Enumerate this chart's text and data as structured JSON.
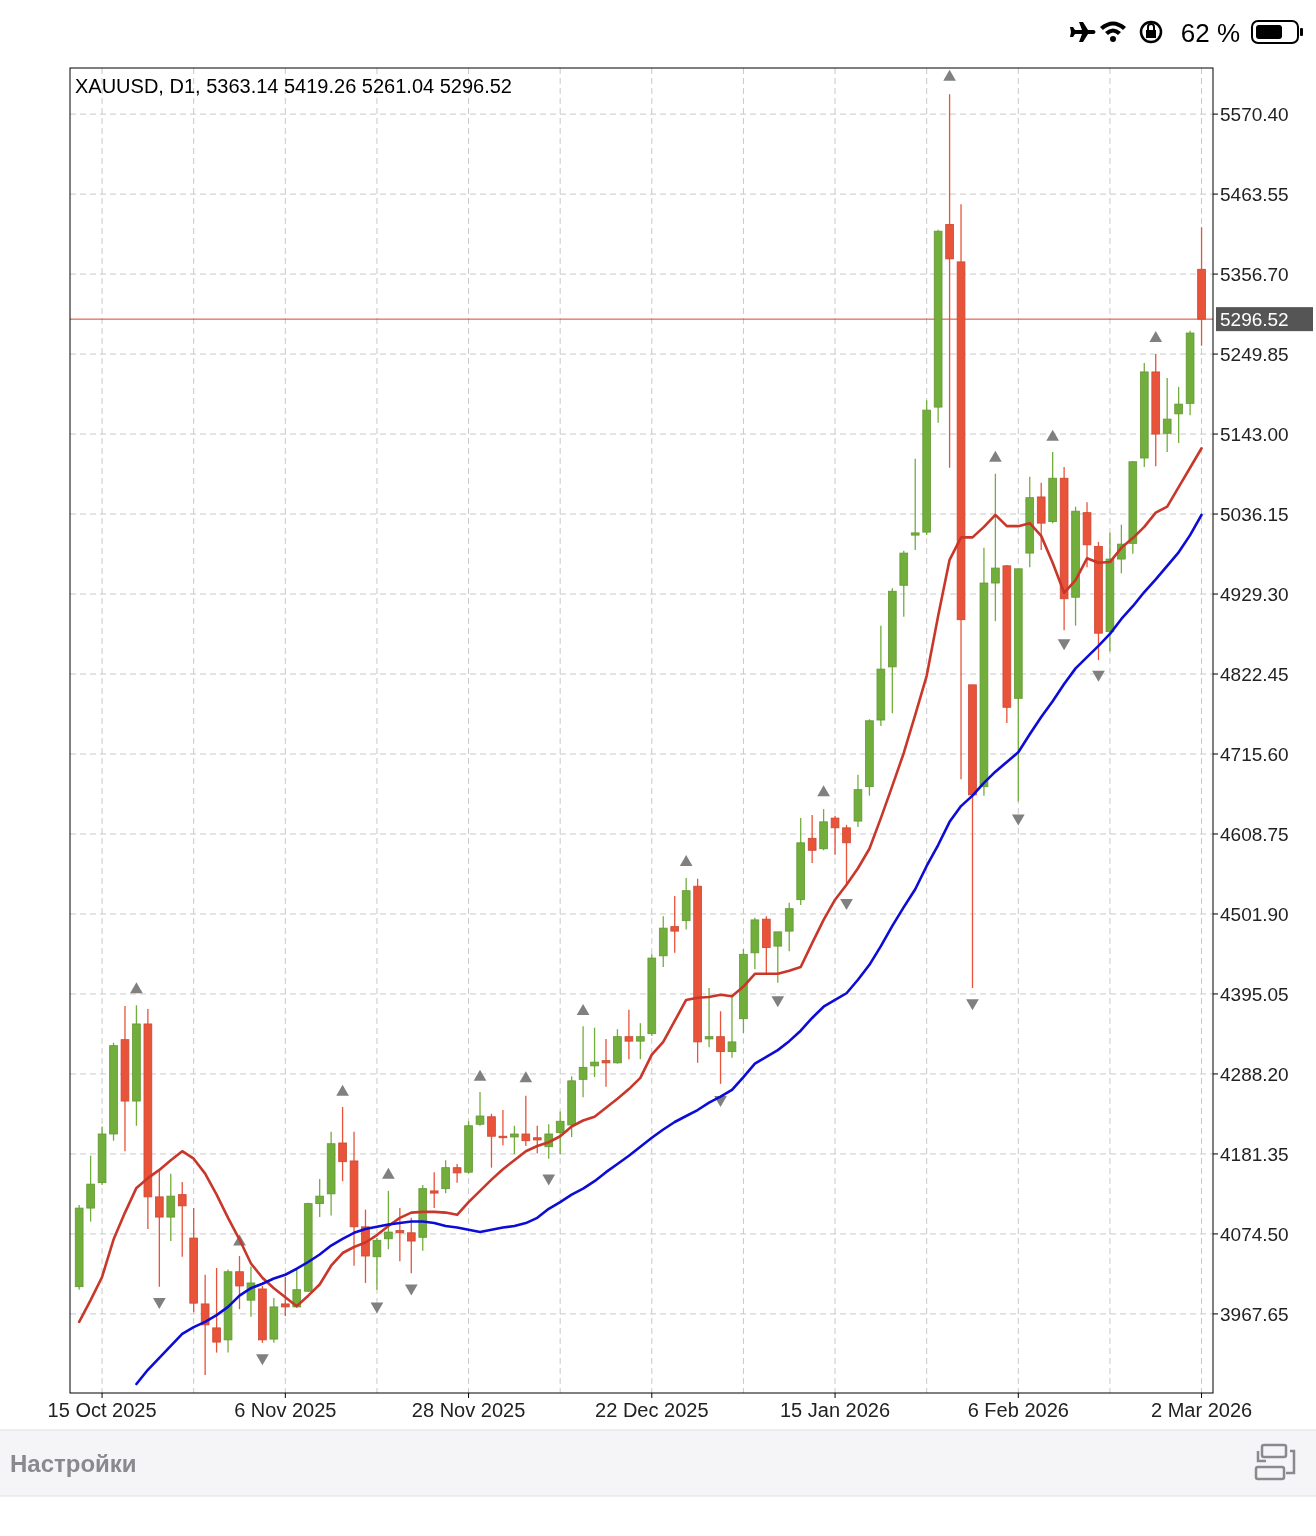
{
  "chart_data": {
    "type": "candlestick",
    "title": "XAUUSD, D1, 5363.14 5419.26 5261.04 5296.52",
    "categories": [
      null,
      null,
      "15 Oct 2025",
      null,
      null,
      null,
      null,
      null,
      null,
      null,
      null,
      null,
      null,
      null,
      null,
      null,
      null,
      null,
      "6 Nov 2025",
      null,
      null,
      null,
      null,
      null,
      null,
      null,
      null,
      null,
      null,
      null,
      null,
      null,
      null,
      null,
      "28 Nov 2025",
      null,
      null,
      null,
      null,
      null,
      null,
      null,
      null,
      null,
      null,
      null,
      null,
      null,
      null,
      null,
      "22 Dec 2025",
      null,
      null,
      null,
      null,
      null,
      null,
      null,
      null,
      null,
      null,
      null,
      null,
      null,
      null,
      null,
      "15 Jan 2026",
      null,
      null,
      null,
      null,
      null,
      null,
      null,
      null,
      null,
      null,
      null,
      null,
      null,
      null,
      null,
      "6 Feb 2026",
      null,
      null,
      null,
      null,
      null,
      null,
      null,
      null,
      null,
      null,
      null,
      null,
      null,
      null,
      null,
      "2 Mar 2026"
    ],
    "ohlc": [
      [
        4004,
        4113,
        4000,
        4109
      ],
      [
        4109,
        4179,
        4091,
        4141
      ],
      [
        4143,
        4218,
        4140,
        4208
      ],
      [
        4208,
        4330,
        4199,
        4326
      ],
      [
        4334,
        4379,
        4185,
        4252
      ],
      [
        4252,
        4380,
        4219,
        4355
      ],
      [
        4355,
        4375,
        4081,
        4124
      ],
      [
        4124,
        4160,
        4004,
        4097
      ],
      [
        4097,
        4155,
        4065,
        4125
      ],
      [
        4127,
        4144,
        4044,
        4112
      ],
      [
        4069,
        4109,
        3970,
        3982
      ],
      [
        3981,
        4020,
        3886,
        3953
      ],
      [
        3949,
        4029,
        3916,
        3930
      ],
      [
        3933,
        4027,
        3916,
        4024
      ],
      [
        4024,
        4045,
        3974,
        4005
      ],
      [
        3986,
        4031,
        3964,
        4009
      ],
      [
        4001,
        4005,
        3929,
        3933
      ],
      [
        3934,
        3989,
        3929,
        3977
      ],
      [
        3981,
        4017,
        3965,
        3977
      ],
      [
        3977,
        4029,
        3976,
        4000
      ],
      [
        3998,
        4116,
        3997,
        4115
      ],
      [
        4115,
        4148,
        4097,
        4125
      ],
      [
        4128,
        4211,
        4099,
        4195
      ],
      [
        4196,
        4244,
        4145,
        4171
      ],
      [
        4172,
        4211,
        4032,
        4084
      ],
      [
        4084,
        4107,
        4009,
        4045
      ],
      [
        4044,
        4069,
        4000,
        4066
      ],
      [
        4068,
        4132,
        4054,
        4077
      ],
      [
        4079,
        4109,
        4038,
        4076
      ],
      [
        4076,
        4096,
        4022,
        4065
      ],
      [
        4070,
        4140,
        4052,
        4135
      ],
      [
        4132,
        4157,
        4109,
        4129
      ],
      [
        4135,
        4173,
        4129,
        4163
      ],
      [
        4163,
        4168,
        4143,
        4156
      ],
      [
        4157,
        4225,
        4155,
        4219
      ],
      [
        4221,
        4264,
        4219,
        4232
      ],
      [
        4231,
        4235,
        4163,
        4205
      ],
      [
        4205,
        4240,
        4193,
        4203
      ],
      [
        4204,
        4219,
        4181,
        4208
      ],
      [
        4208,
        4259,
        4192,
        4199
      ],
      [
        4203,
        4219,
        4182,
        4200
      ],
      [
        4191,
        4221,
        4175,
        4208
      ],
      [
        4210,
        4238,
        4181,
        4225
      ],
      [
        4220,
        4285,
        4204,
        4279
      ],
      [
        4281,
        4352,
        4257,
        4297
      ],
      [
        4299,
        4350,
        4284,
        4304
      ],
      [
        4306,
        4335,
        4271,
        4303
      ],
      [
        4303,
        4348,
        4302,
        4338
      ],
      [
        4338,
        4374,
        4308,
        4332
      ],
      [
        4332,
        4356,
        4308,
        4338
      ],
      [
        4342,
        4448,
        4339,
        4443
      ],
      [
        4446,
        4499,
        4431,
        4483
      ],
      [
        4485,
        4526,
        4450,
        4479
      ],
      [
        4493,
        4550,
        4481,
        4533
      ],
      [
        4539,
        4549,
        4303,
        4331
      ],
      [
        4335,
        4403,
        4324,
        4338
      ],
      [
        4338,
        4372,
        4275,
        4318
      ],
      [
        4318,
        4391,
        4310,
        4331
      ],
      [
        4362,
        4455,
        4343,
        4448
      ],
      [
        4450,
        4497,
        4428,
        4494
      ],
      [
        4495,
        4499,
        4423,
        4457
      ],
      [
        4459,
        4478,
        4410,
        4478
      ],
      [
        4479,
        4517,
        4452,
        4509
      ],
      [
        4521,
        4630,
        4514,
        4597
      ],
      [
        4603,
        4634,
        4570,
        4587
      ],
      [
        4589,
        4642,
        4587,
        4625
      ],
      [
        4630,
        4633,
        4581,
        4617
      ],
      [
        4617,
        4621,
        4541,
        4597
      ],
      [
        4626,
        4688,
        4618,
        4668
      ],
      [
        4672,
        4762,
        4660,
        4760
      ],
      [
        4761,
        4887,
        4753,
        4829
      ],
      [
        4832,
        4937,
        4770,
        4933
      ],
      [
        4941,
        4987,
        4899,
        4984
      ],
      [
        5008,
        5110,
        4988,
        5011
      ],
      [
        5012,
        5188,
        5008,
        5175
      ],
      [
        5179,
        5416,
        5158,
        5414
      ],
      [
        5423,
        5597,
        5098,
        5377
      ],
      [
        5373,
        5450,
        4682,
        4895
      ],
      [
        4808,
        4808,
        4403,
        4661
      ],
      [
        4672,
        4991,
        4660,
        4944
      ],
      [
        4944,
        5090,
        4893,
        4964
      ],
      [
        4967,
        4968,
        4757,
        4778
      ],
      [
        4790,
        4963,
        4652,
        4963
      ],
      [
        4984,
        5086,
        4965,
        5058
      ],
      [
        5059,
        5078,
        4988,
        5024
      ],
      [
        5026,
        5119,
        5024,
        5084
      ],
      [
        5084,
        5099,
        4881,
        4923
      ],
      [
        4925,
        5046,
        4887,
        5040
      ],
      [
        5038,
        5052,
        4965,
        4995
      ],
      [
        4993,
        4999,
        4841,
        4877
      ],
      [
        4879,
        5011,
        4853,
        4976
      ],
      [
        4976,
        5022,
        4957,
        4996
      ],
      [
        4997,
        5107,
        4983,
        5106
      ],
      [
        5111,
        5238,
        5099,
        5226
      ],
      [
        5226,
        5250,
        5100,
        5143
      ],
      [
        5144,
        5218,
        5119,
        5163
      ],
      [
        5170,
        5206,
        5131,
        5183
      ],
      [
        5184,
        5281,
        5168,
        5278
      ],
      [
        5363.14,
        5419.26,
        5261.04,
        5296.52
      ]
    ],
    "colors": [
      "#72ae3c",
      "#72ae3c",
      "#72ae3c",
      "#72ae3c",
      "#e9533a",
      "#72ae3c",
      "#e9533a",
      "#e9533a",
      "#72ae3c",
      "#e9533a",
      "#e9533a",
      "#e9533a",
      "#e9533a",
      "#72ae3c",
      "#e9533a",
      "#72ae3c",
      "#e9533a",
      "#72ae3c",
      "#e9533a",
      "#72ae3c",
      "#72ae3c",
      "#72ae3c",
      "#72ae3c",
      "#e9533a",
      "#e9533a",
      "#e9533a",
      "#72ae3c",
      "#72ae3c",
      "#e9533a",
      "#e9533a",
      "#72ae3c",
      "#e9533a",
      "#72ae3c",
      "#e9533a",
      "#72ae3c",
      "#72ae3c",
      "#e9533a",
      "#e9533a",
      "#72ae3c",
      "#e9533a",
      "#e9533a",
      "#72ae3c",
      "#72ae3c",
      "#72ae3c",
      "#72ae3c",
      "#72ae3c",
      "#e9533a",
      "#72ae3c",
      "#e9533a",
      "#72ae3c",
      "#72ae3c",
      "#72ae3c",
      "#e9533a",
      "#72ae3c",
      "#e9533a",
      "#72ae3c",
      "#e9533a",
      "#72ae3c",
      "#72ae3c",
      "#72ae3c",
      "#e9533a",
      "#72ae3c",
      "#72ae3c",
      "#72ae3c",
      "#e9533a",
      "#72ae3c",
      "#e9533a",
      "#e9533a",
      "#72ae3c",
      "#72ae3c",
      "#72ae3c",
      "#72ae3c",
      "#72ae3c",
      "#72ae3c",
      "#72ae3c",
      "#72ae3c",
      "#e9533a",
      "#e9533a",
      "#e9533a",
      "#72ae3c",
      "#72ae3c",
      "#e9533a",
      "#72ae3c",
      "#72ae3c",
      "#e9533a",
      "#72ae3c",
      "#e9533a",
      "#72ae3c",
      "#e9533a",
      "#e9533a",
      "#72ae3c",
      "#72ae3c",
      "#72ae3c",
      "#72ae3c",
      "#e9533a",
      "#72ae3c",
      "#72ae3c",
      "#72ae3c",
      "#e9533a"
    ],
    "series": [
      {
        "type": "line",
        "color": "#c8372a",
        "values": [
          3957,
          3986,
          4017,
          4067,
          4103,
          4136,
          4149,
          4160,
          4173,
          4185,
          4175,
          4155,
          4127,
          4096,
          4067,
          4035,
          4016,
          4002,
          3990,
          3978,
          3992,
          4007,
          4032,
          4049,
          4057,
          4063,
          4073,
          4085,
          4096,
          4103,
          4104,
          4104,
          4103,
          4100,
          4117,
          4132,
          4147,
          4161,
          4173,
          4185,
          4192,
          4197,
          4205,
          4218,
          4226,
          4231,
          4243,
          4255,
          4268,
          4283,
          4314,
          4331,
          4359,
          4387,
          4390,
          4391,
          4394,
          4392,
          4405,
          4422,
          4422,
          4422,
          4426,
          4431,
          4463,
          4494,
          4521,
          4541,
          4563,
          4589,
          4630,
          4673,
          4717,
          4768,
          4820,
          4900,
          4975,
          5005,
          5005,
          5019,
          5035,
          5020,
          5020,
          5024,
          5007,
          4971,
          4931,
          4948,
          4977,
          4971,
          4972,
          4991,
          5004,
          5019,
          5038,
          5046,
          5072,
          5098,
          5124
        ]
      },
      {
        "type": "line",
        "color": "#0c0cd6",
        "values": [
          null,
          null,
          null,
          null,
          null,
          3874,
          3893,
          3909,
          3925,
          3941,
          3950,
          3957,
          3966,
          3977,
          3992,
          4002,
          4008,
          4015,
          4020,
          4028,
          4037,
          4047,
          4059,
          4068,
          4076,
          4081,
          4084,
          4087,
          4089,
          4091,
          4091,
          4089,
          4085,
          4083,
          4080,
          4077,
          4080,
          4083,
          4085,
          4089,
          4096,
          4108,
          4117,
          4127,
          4135,
          4145,
          4157,
          4168,
          4179,
          4191,
          4203,
          4214,
          4224,
          4232,
          4240,
          4250,
          4258,
          4267,
          4284,
          4302,
          4311,
          4320,
          4332,
          4346,
          4363,
          4378,
          4387,
          4396,
          4414,
          4434,
          4459,
          4486,
          4511,
          4535,
          4566,
          4594,
          4625,
          4646,
          4660,
          4677,
          4692,
          4705,
          4718,
          4742,
          4765,
          4786,
          4809,
          4830,
          4845,
          4860,
          4876,
          4896,
          4913,
          4932,
          4949,
          4967,
          4985,
          5008,
          5035
        ]
      },
      {
        "type": "scatter",
        "marker": "triangle",
        "color": "#808080",
        "values": [
          null,
          null,
          null,
          null,
          null,
          4401,
          null,
          null,
          null,
          null,
          null,
          null,
          null,
          null,
          4064,
          null,
          null,
          null,
          null,
          null,
          null,
          null,
          null,
          4264,
          null,
          null,
          null,
          4153,
          null,
          null,
          null,
          null,
          null,
          null,
          null,
          4284,
          null,
          null,
          null,
          4282,
          null,
          null,
          null,
          null,
          4372,
          null,
          null,
          null,
          null,
          null,
          null,
          null,
          null,
          4571,
          null,
          null,
          null,
          null,
          null,
          null,
          null,
          null,
          null,
          null,
          null,
          4664,
          null,
          null,
          null,
          null,
          null,
          null,
          null,
          null,
          null,
          null,
          5620,
          null,
          null,
          null,
          5111,
          null,
          null,
          null,
          null,
          5139,
          null,
          null,
          null,
          null,
          null,
          null,
          null,
          null,
          5271,
          null,
          null,
          null,
          null
        ]
      },
      {
        "type": "scatter",
        "marker": "triangle-down",
        "color": "#808080",
        "values": [
          null,
          null,
          null,
          null,
          null,
          null,
          null,
          3984,
          null,
          null,
          null,
          null,
          null,
          null,
          null,
          null,
          3909,
          null,
          null,
          null,
          null,
          null,
          null,
          null,
          null,
          null,
          3978,
          null,
          null,
          4002,
          null,
          null,
          null,
          null,
          null,
          null,
          null,
          null,
          null,
          null,
          null,
          4149,
          null,
          null,
          null,
          null,
          null,
          null,
          null,
          null,
          null,
          null,
          null,
          null,
          null,
          null,
          4254,
          null,
          null,
          null,
          null,
          4387,
          null,
          null,
          null,
          null,
          null,
          4517,
          null,
          null,
          null,
          null,
          null,
          null,
          null,
          null,
          null,
          null,
          4383,
          null,
          null,
          null,
          4630,
          null,
          null,
          null,
          4864,
          null,
          null,
          4822,
          null,
          null,
          null,
          null,
          null,
          null,
          null,
          null,
          null
        ]
      }
    ],
    "ylim": [
      3862,
      5632
    ],
    "yticks": [
      {
        "value": 3967.65,
        "label": "3967.65"
      },
      {
        "value": 4074.5,
        "label": "4074.50"
      },
      {
        "value": 4181.35,
        "label": "4181.35"
      },
      {
        "value": 4288.2,
        "label": "4288.20"
      },
      {
        "value": 4395.05,
        "label": "4395.05"
      },
      {
        "value": 4501.9,
        "label": "4501.90"
      },
      {
        "value": 4608.75,
        "label": "4608.75"
      },
      {
        "value": 4715.6,
        "label": "4715.60"
      },
      {
        "value": 4822.45,
        "label": "4822.45"
      },
      {
        "value": 4929.3,
        "label": "4929.30"
      },
      {
        "value": 5036.15,
        "label": "5036.15"
      },
      {
        "value": 5143,
        "label": "5143.00"
      },
      {
        "value": 5249.85,
        "label": "5249.85"
      },
      {
        "value": 5356.7,
        "label": "5356.70"
      },
      {
        "value": 5463.55,
        "label": "5463.55"
      },
      {
        "value": 5570.4,
        "label": "5570.40"
      }
    ],
    "grid": true,
    "ref_lines": [
      {
        "axis": "y",
        "value": 5296.52,
        "label": "5296.52",
        "color": "#d9442e"
      }
    ],
    "annotations": [
      "62 %",
      "Настройки"
    ]
  }
}
